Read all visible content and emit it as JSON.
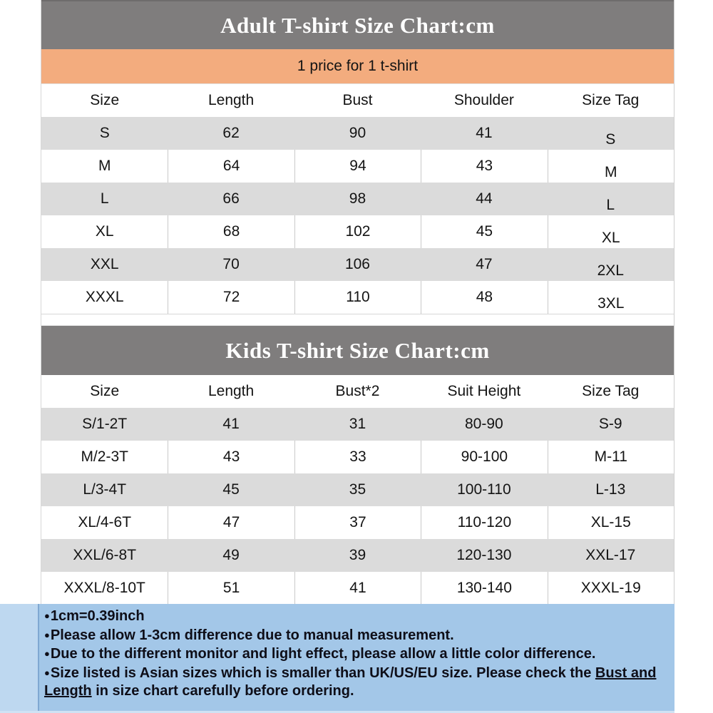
{
  "adult_chart": {
    "title": "Adult T-shirt Size Chart:cm",
    "banner": "1 price for 1 t-shirt",
    "columns": [
      "Size",
      "Length",
      "Bust",
      "Shoulder",
      "Size Tag"
    ],
    "rows": [
      [
        "S",
        "62",
        "90",
        "41",
        "S"
      ],
      [
        "M",
        "64",
        "94",
        "43",
        "M"
      ],
      [
        "L",
        "66",
        "98",
        "44",
        "L"
      ],
      [
        "XL",
        "68",
        "102",
        "45",
        "XL"
      ],
      [
        "XXL",
        "70",
        "106",
        "47",
        "2XL"
      ],
      [
        "XXXL",
        "72",
        "110",
        "48",
        "3XL"
      ]
    ]
  },
  "kids_chart": {
    "title": "Kids T-shirt Size Chart:cm",
    "columns": [
      "Size",
      "Length",
      "Bust*2",
      "Suit Height",
      "Size Tag"
    ],
    "rows": [
      [
        "S/1-2T",
        "41",
        "31",
        "80-90",
        "S-9"
      ],
      [
        "M/2-3T",
        "43",
        "33",
        "90-100",
        "M-11"
      ],
      [
        "L/3-4T",
        "45",
        "35",
        "100-110",
        "L-13"
      ],
      [
        "XL/4-6T",
        "47",
        "37",
        "110-120",
        "XL-15"
      ],
      [
        "XXL/6-8T",
        "49",
        "39",
        "120-130",
        "XXL-17"
      ],
      [
        "XXXL/8-10T",
        "51",
        "41",
        "130-140",
        "XXXL-19"
      ]
    ]
  },
  "notes": {
    "bullet": "●",
    "line1": "1cm=0.39inch",
    "line2": "Please allow 1-3cm difference due to manual measurement.",
    "line3": "Due to the different monitor and light effect, please allow a little color difference.",
    "line4_before": "Size listed is Asian sizes which is smaller than UK/US/EU size. Please check the ",
    "line4_underlined": "Bust and Length",
    "line4_after": " in size chart carefully before ordering."
  },
  "colors": {
    "title_band_gray": "#7f7d7d",
    "price_band_orange": "#f3ac7e",
    "row_alt_gray": "#dbdbdb",
    "notes_blue": "#a3c7e8",
    "title_text": "#ffffff",
    "body_text": "#141414"
  }
}
